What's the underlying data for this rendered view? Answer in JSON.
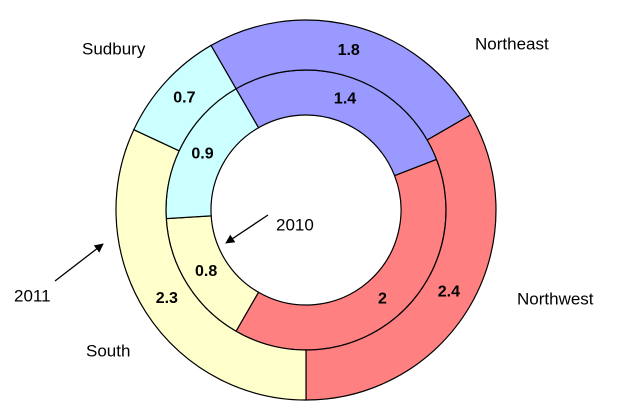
{
  "chart_data": {
    "type": "donut",
    "categories": [
      "Northeast",
      "Northwest",
      "South",
      "Sudbury"
    ],
    "colors": [
      "#9999ff",
      "#ff8080",
      "#ffffcc",
      "#ccffff"
    ],
    "start_angle": -30,
    "series": [
      {
        "name": "2010",
        "values": [
          1.4,
          2.0,
          0.8,
          0.9
        ]
      },
      {
        "name": "2011",
        "values": [
          1.8,
          2.4,
          2.3,
          0.7
        ]
      }
    ]
  }
}
